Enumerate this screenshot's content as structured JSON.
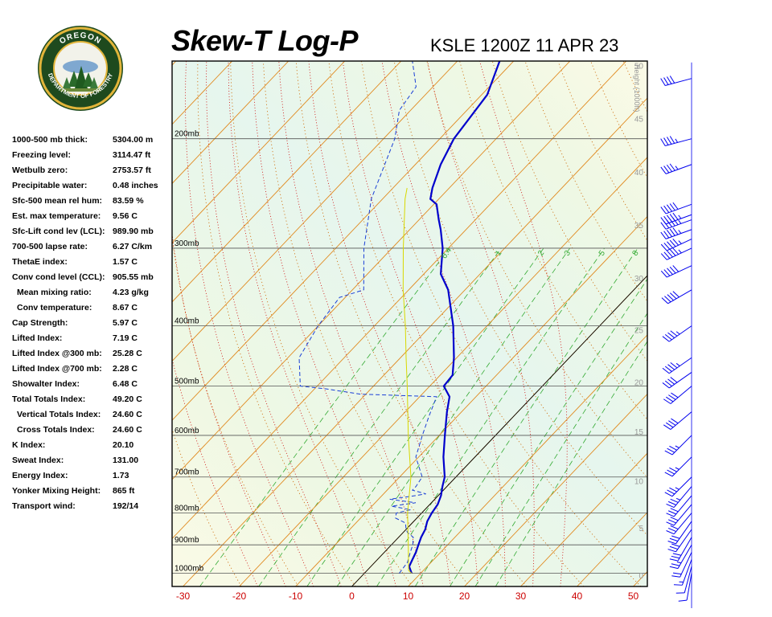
{
  "header": {
    "title": "Skew-T Log-P",
    "station": "KSLE 1200Z 11 APR 23"
  },
  "logo": {
    "top_text": "OREGON",
    "ring_text": "DEPARTMENT OF FORESTRY",
    "icon": "oregon-forestry-seal-icon"
  },
  "indices": [
    {
      "label": "1000-500 mb thick:",
      "value": "5304.00 m"
    },
    {
      "label": "Freezing level:",
      "value": "3114.47 ft"
    },
    {
      "label": "Wetbulb zero:",
      "value": "2753.57 ft"
    },
    {
      "label": "Precipitable water:",
      "value": "0.48 inches"
    },
    {
      "label": "Sfc-500 mean rel hum:",
      "value": "83.59 %"
    },
    {
      "label": "Est. max temperature:",
      "value": "9.56 C"
    },
    {
      "label": "Sfc-Lift cond lev (LCL):",
      "value": "989.90 mb"
    },
    {
      "label": "700-500 lapse rate:",
      "value": "6.27 C/km"
    },
    {
      "label": "ThetaE index:",
      "value": "1.57 C"
    },
    {
      "label": "Conv cond level (CCL):",
      "value": "905.55 mb"
    },
    {
      "label": "Mean mixing ratio:",
      "value": "4.23 g/kg",
      "indent": true
    },
    {
      "label": "Conv temperature:",
      "value": "8.67 C",
      "indent": true
    },
    {
      "label": "Cap Strength:",
      "value": "5.97 C"
    },
    {
      "label": "Lifted Index:",
      "value": "7.19 C"
    },
    {
      "label": "Lifted Index @300 mb:",
      "value": "25.28 C"
    },
    {
      "label": "Lifted Index @700 mb:",
      "value": "2.28 C"
    },
    {
      "label": "Showalter Index:",
      "value": "6.48 C"
    },
    {
      "label": "Total Totals Index:",
      "value": "49.20 C"
    },
    {
      "label": "Vertical Totals Index:",
      "value": "24.60 C",
      "indent": true
    },
    {
      "label": "Cross Totals Index:",
      "value": "24.60 C",
      "indent": true
    },
    {
      "label": "K Index:",
      "value": "20.10"
    },
    {
      "label": "Sweat Index:",
      "value": "131.00"
    },
    {
      "label": "Energy Index:",
      "value": "1.73"
    },
    {
      "label": "Yonker Mixing Height:",
      "value": "865 ft"
    },
    {
      "label": "Transport wind:",
      "value": "192/14"
    }
  ],
  "colors": {
    "temperature": "#0000cc",
    "dewpoint": "#1a3fd6",
    "parcel": "#d8d800",
    "isotherm": "#e08a20",
    "dry_adiabat": "#cc6600",
    "moist_adiabat": "#cc0000",
    "mixing_ratio": "#33aa33",
    "wind_barb": "#0000ee",
    "x_tick_label": "#cc0000",
    "height_label": "#999999"
  },
  "chart_data": {
    "type": "line",
    "title": "Skew-T Log-P",
    "xlabel": "",
    "ylabel": "",
    "xlim": [
      -32,
      52
    ],
    "ylim_mb": [
      1050,
      150
    ],
    "skew_scale": "log-p",
    "x_ticks": [
      -30,
      -20,
      -10,
      0,
      10,
      20,
      30,
      40,
      50
    ],
    "pressure_levels": [
      {
        "p": 200,
        "label": "200mb"
      },
      {
        "p": 300,
        "label": "300mb"
      },
      {
        "p": 400,
        "label": "400mb"
      },
      {
        "p": 500,
        "label": "500mb"
      },
      {
        "p": 600,
        "label": "600mb"
      },
      {
        "p": 700,
        "label": "700mb"
      },
      {
        "p": 800,
        "label": "800mb"
      },
      {
        "p": 900,
        "label": "900mb"
      },
      {
        "p": 1000,
        "label": "1000mb"
      }
    ],
    "height_axis": {
      "title": "Height (1000ft)",
      "ticks": [
        {
          "label": "0",
          "p": 1010
        },
        {
          "label": "5",
          "p": 848
        },
        {
          "label": "10",
          "p": 712
        },
        {
          "label": "15",
          "p": 593
        },
        {
          "label": "20",
          "p": 494
        },
        {
          "label": "25",
          "p": 407
        },
        {
          "label": "30",
          "p": 336
        },
        {
          "label": "35",
          "p": 276
        },
        {
          "label": "40",
          "p": 227
        },
        {
          "label": "45",
          "p": 186
        },
        {
          "label": "50",
          "p": 153
        }
      ]
    },
    "mixing_ratio_labels": [
      {
        "label": "0.4",
        "w": 0.4
      },
      {
        "label": "1",
        "w": 1
      },
      {
        "label": "2",
        "w": 2
      },
      {
        "label": "3",
        "w": 3
      },
      {
        "label": "5",
        "w": 5
      },
      {
        "label": "8",
        "w": 8
      }
    ],
    "series": [
      {
        "role": "temperature",
        "points": [
          [
            1000,
            8.4
          ],
          [
            975,
            6.8
          ],
          [
            950,
            6.2
          ],
          [
            925,
            5.6
          ],
          [
            900,
            4.8
          ],
          [
            875,
            4.0
          ],
          [
            850,
            3.4
          ],
          [
            825,
            2.4
          ],
          [
            800,
            1.8
          ],
          [
            775,
            1.4
          ],
          [
            750,
            0.5
          ],
          [
            725,
            -0.8
          ],
          [
            700,
            -2.0
          ],
          [
            650,
            -5.6
          ],
          [
            600,
            -9.0
          ],
          [
            550,
            -12.6
          ],
          [
            520,
            -14.7
          ],
          [
            500,
            -17.5
          ],
          [
            480,
            -17.8
          ],
          [
            450,
            -20.5
          ],
          [
            400,
            -26.0
          ],
          [
            350,
            -33.0
          ],
          [
            330,
            -37.0
          ],
          [
            300,
            -41.0
          ],
          [
            280,
            -44.5
          ],
          [
            270,
            -46.5
          ],
          [
            255,
            -49.5
          ],
          [
            250,
            -51.5
          ],
          [
            240,
            -53.0
          ],
          [
            220,
            -55.5
          ],
          [
            200,
            -57.5
          ],
          [
            170,
            -59.0
          ],
          [
            150,
            -62.5
          ],
          [
            140,
            -65.5
          ]
        ]
      },
      {
        "role": "dewpoint",
        "points": [
          [
            1000,
            6.2
          ],
          [
            960,
            5.8
          ],
          [
            925,
            4.6
          ],
          [
            900,
            3.8
          ],
          [
            875,
            2.6
          ],
          [
            860,
            0.8
          ],
          [
            850,
            0.0
          ],
          [
            830,
            -1.2
          ],
          [
            815,
            -3.8
          ],
          [
            800,
            -4.5
          ],
          [
            790,
            -2.5
          ],
          [
            780,
            -6.5
          ],
          [
            770,
            -2.8
          ],
          [
            760,
            -8.0
          ],
          [
            750,
            -4.0
          ],
          [
            745,
            -2.5
          ],
          [
            735,
            -5.5
          ],
          [
            725,
            -5.5
          ],
          [
            700,
            -6.0
          ],
          [
            650,
            -10.5
          ],
          [
            600,
            -13.0
          ],
          [
            560,
            -15.0
          ],
          [
            520,
            -17.0
          ],
          [
            515,
            -31.0
          ],
          [
            505,
            -38.0
          ],
          [
            500,
            -43.0
          ],
          [
            450,
            -48.0
          ],
          [
            400,
            -50.0
          ],
          [
            360,
            -51.0
          ],
          [
            350,
            -48.0
          ],
          [
            300,
            -55.0
          ],
          [
            250,
            -62.0
          ],
          [
            200,
            -68.0
          ],
          [
            180,
            -72.0
          ],
          [
            165,
            -73.0
          ],
          [
            150,
            -78.0
          ],
          [
            135,
            -82.0
          ]
        ]
      },
      {
        "role": "parcel",
        "points": [
          [
            1000,
            8.4
          ],
          [
            989.9,
            7.4
          ],
          [
            900,
            3.0
          ],
          [
            800,
            -2.5
          ],
          [
            700,
            -8.0
          ],
          [
            600,
            -15.5
          ],
          [
            500,
            -24.0
          ],
          [
            450,
            -29.0
          ],
          [
            400,
            -34.5
          ],
          [
            350,
            -41.0
          ],
          [
            300,
            -48.0
          ],
          [
            250,
            -56.0
          ],
          [
            240,
            -57.5
          ]
        ]
      }
    ],
    "wind_barbs": [
      {
        "p": 1000,
        "dir": 190,
        "kt": 10
      },
      {
        "p": 975,
        "dir": 195,
        "kt": 10
      },
      {
        "p": 950,
        "dir": 200,
        "kt": 15
      },
      {
        "p": 925,
        "dir": 205,
        "kt": 20
      },
      {
        "p": 900,
        "dir": 210,
        "kt": 25
      },
      {
        "p": 875,
        "dir": 210,
        "kt": 30
      },
      {
        "p": 850,
        "dir": 215,
        "kt": 30
      },
      {
        "p": 825,
        "dir": 215,
        "kt": 30
      },
      {
        "p": 800,
        "dir": 220,
        "kt": 30
      },
      {
        "p": 775,
        "dir": 220,
        "kt": 30
      },
      {
        "p": 750,
        "dir": 220,
        "kt": 30
      },
      {
        "p": 725,
        "dir": 220,
        "kt": 35
      },
      {
        "p": 700,
        "dir": 225,
        "kt": 35
      },
      {
        "p": 650,
        "dir": 225,
        "kt": 35
      },
      {
        "p": 600,
        "dir": 225,
        "kt": 35
      },
      {
        "p": 550,
        "dir": 230,
        "kt": 40
      },
      {
        "p": 500,
        "dir": 230,
        "kt": 40
      },
      {
        "p": 475,
        "dir": 235,
        "kt": 40
      },
      {
        "p": 450,
        "dir": 235,
        "kt": 45
      },
      {
        "p": 400,
        "dir": 235,
        "kt": 45
      },
      {
        "p": 350,
        "dir": 240,
        "kt": 50
      },
      {
        "p": 320,
        "dir": 245,
        "kt": 50
      },
      {
        "p": 300,
        "dir": 245,
        "kt": 55
      },
      {
        "p": 290,
        "dir": 245,
        "kt": 55
      },
      {
        "p": 280,
        "dir": 250,
        "kt": 55
      },
      {
        "p": 270,
        "dir": 250,
        "kt": 55
      },
      {
        "p": 265,
        "dir": 250,
        "kt": 55
      },
      {
        "p": 255,
        "dir": 250,
        "kt": 50
      },
      {
        "p": 220,
        "dir": 250,
        "kt": 45
      },
      {
        "p": 200,
        "dir": 255,
        "kt": 45
      },
      {
        "p": 160,
        "dir": 255,
        "kt": 40
      }
    ]
  }
}
